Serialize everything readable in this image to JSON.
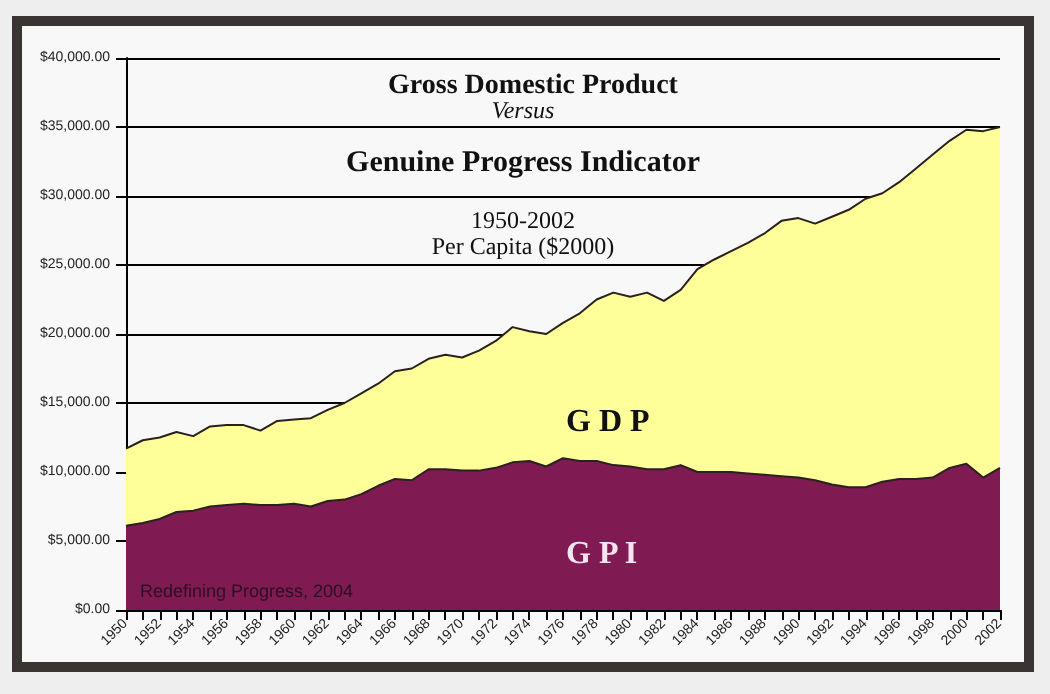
{
  "chart_data": {
    "type": "area",
    "title": "Gross Domestic Product",
    "annotations": [
      "Versus",
      "Genuine Progress Indicator",
      "1950-2002",
      "Per Capita ($2000)",
      "Redefining Progress, 2004"
    ],
    "categories": [
      "1950",
      null,
      "1952",
      null,
      "1954",
      null,
      "1956",
      null,
      "1958",
      null,
      "1960",
      null,
      "1962",
      null,
      "1964",
      null,
      "1966",
      null,
      "1968",
      null,
      "1970",
      null,
      "1972",
      null,
      "1974",
      null,
      "1976",
      null,
      "1978",
      null,
      "1980",
      null,
      "1982",
      null,
      "1984",
      null,
      "1986",
      null,
      "1988",
      null,
      "1990",
      null,
      "1992",
      null,
      "1994",
      null,
      "1996",
      null,
      "1998",
      null,
      "2000",
      null,
      "2002"
    ],
    "series": [
      {
        "name": "G D P",
        "color": "#ffff99",
        "values": [
          11700,
          12300,
          12500,
          12900,
          12600,
          13300,
          13400,
          13400,
          13000,
          13700,
          13800,
          13900,
          14500,
          15000,
          15700,
          16400,
          17300,
          17500,
          18200,
          18500,
          18300,
          18800,
          19500,
          20500,
          20200,
          20000,
          20800,
          21500,
          22500,
          23000,
          22700,
          23000,
          22400,
          23200,
          24700,
          25400,
          26000,
          26600,
          27300,
          28200,
          28400,
          28000,
          28500,
          29000,
          29800,
          30200,
          31000,
          32000,
          33000,
          34000,
          34800,
          34700,
          35000
        ]
      },
      {
        "name": "G P I",
        "color": "#7f1a53",
        "values": [
          6100,
          6300,
          6600,
          7100,
          7200,
          7500,
          7600,
          7700,
          7600,
          7600,
          7700,
          7500,
          7900,
          8000,
          8400,
          9000,
          9500,
          9400,
          10200,
          10200,
          10100,
          10100,
          10300,
          10700,
          10800,
          10400,
          11000,
          10800,
          10800,
          10500,
          10400,
          10200,
          10200,
          10500,
          10000,
          10000,
          10000,
          9900,
          9800,
          9700,
          9600,
          9400,
          9100,
          8900,
          8900,
          9300,
          9500,
          9500,
          9600,
          10300,
          10600,
          9600,
          10300
        ]
      }
    ],
    "ylim": [
      0,
      40000
    ],
    "yticks": [
      {
        "value": 0,
        "label": "$0.00"
      },
      {
        "value": 5000,
        "label": "$5,000.00"
      },
      {
        "value": 10000,
        "label": "$10,000.00"
      },
      {
        "value": 15000,
        "label": "$15,000.00"
      },
      {
        "value": 20000,
        "label": "$20,000.00"
      },
      {
        "value": 25000,
        "label": "$25,000.00"
      },
      {
        "value": 30000,
        "label": "$30,000.00"
      },
      {
        "value": 35000,
        "label": "$35,000.00"
      },
      {
        "value": 40000,
        "label": "$40,000.00"
      }
    ],
    "grid": "y",
    "legend": false
  }
}
